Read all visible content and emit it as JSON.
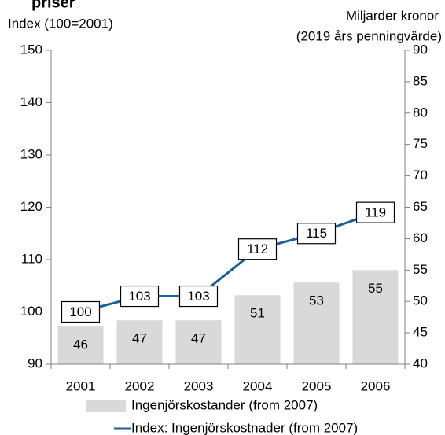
{
  "chart_data": {
    "type": "bar+line",
    "title": "priser",
    "y_label": "Index (100=2001)",
    "y2_label": [
      "Miljarder kronor",
      "(2019 års penningvärde)"
    ],
    "categories": [
      "2001",
      "2002",
      "2003",
      "2004",
      "2005",
      "2006"
    ],
    "series": [
      {
        "name": "Ingenjörskostander (from 2007)",
        "type": "bar",
        "axis": "y2",
        "color": "#d9d9d9",
        "values": [
          46,
          47,
          47,
          51,
          53,
          55
        ]
      },
      {
        "name": "Index: Ingenjörskostnader (from 2007)",
        "type": "line",
        "axis": "y",
        "color": "#1b5f98",
        "values": [
          100,
          103,
          103,
          112,
          115,
          119
        ]
      }
    ],
    "ylim": [
      90,
      150
    ],
    "yticks": [
      90,
      100,
      110,
      120,
      130,
      140,
      150
    ],
    "y2lim": [
      40,
      90
    ],
    "y2ticks": [
      40,
      45,
      50,
      55,
      60,
      65,
      70,
      75,
      80,
      85,
      90
    ],
    "grid": false
  }
}
